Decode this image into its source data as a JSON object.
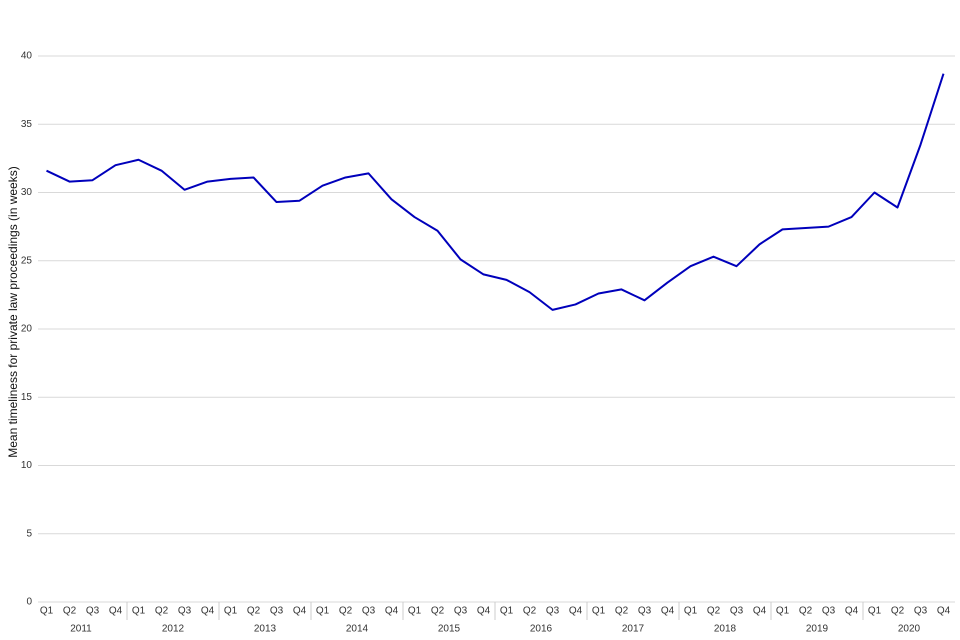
{
  "chart_data": {
    "type": "line",
    "ylabel": "Mean timeliness for private law proceedings (in weeks)",
    "categories": [
      "Q1",
      "Q2",
      "Q3",
      "Q4",
      "Q1",
      "Q2",
      "Q3",
      "Q4",
      "Q1",
      "Q2",
      "Q3",
      "Q4",
      "Q1",
      "Q2",
      "Q3",
      "Q4",
      "Q1",
      "Q2",
      "Q3",
      "Q4",
      "Q1",
      "Q2",
      "Q3",
      "Q4",
      "Q1",
      "Q2",
      "Q3",
      "Q4",
      "Q1",
      "Q2",
      "Q3",
      "Q4",
      "Q1",
      "Q2",
      "Q3",
      "Q4",
      "Q1",
      "Q2",
      "Q3",
      "Q4"
    ],
    "years": [
      "2011",
      "2012",
      "2013",
      "2014",
      "2015",
      "2016",
      "2017",
      "2018",
      "2019",
      "2020"
    ],
    "values": [
      31.6,
      30.8,
      30.9,
      32.0,
      32.4,
      31.6,
      30.2,
      30.8,
      31.0,
      31.1,
      29.3,
      29.4,
      30.5,
      31.1,
      31.4,
      29.5,
      28.2,
      27.2,
      25.1,
      24.0,
      23.6,
      22.7,
      21.4,
      21.8,
      22.6,
      22.9,
      22.1,
      23.4,
      24.6,
      25.3,
      24.6,
      26.2,
      27.3,
      27.4,
      27.5,
      28.2,
      30.0,
      28.9,
      33.5,
      38.7
    ],
    "color": "#0000bb",
    "ylim": [
      0,
      40
    ],
    "yticks": [
      0,
      5,
      10,
      15,
      20,
      25,
      30,
      35,
      40
    ],
    "grid": true
  }
}
